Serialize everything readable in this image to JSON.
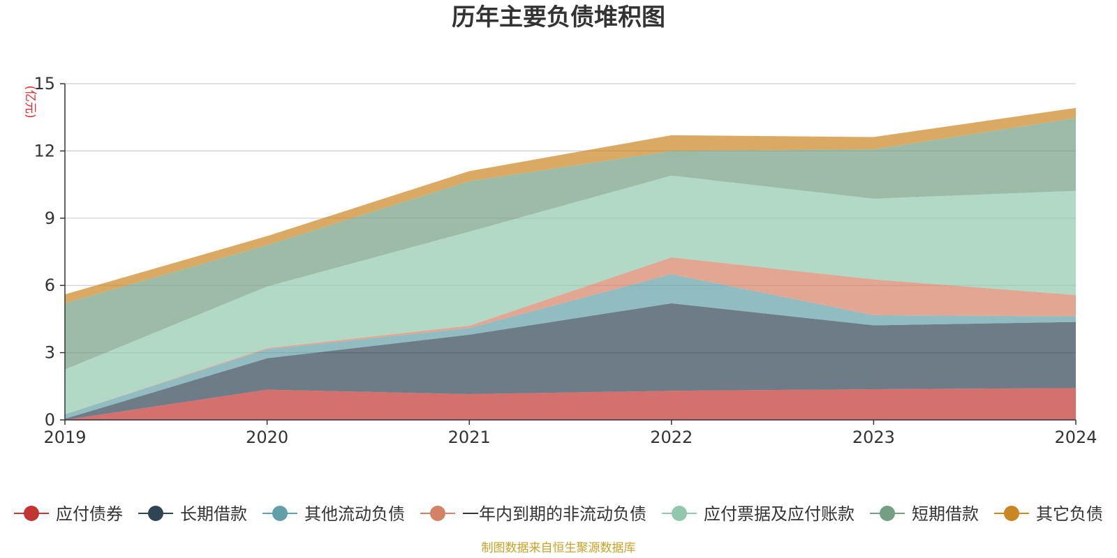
{
  "chart_data": {
    "type": "area",
    "stacked": true,
    "title": "历年主要负债堆积图",
    "ylabel": "(亿元)",
    "categories": [
      "2019",
      "2020",
      "2021",
      "2022",
      "2023",
      "2024"
    ],
    "ylim": [
      0,
      15
    ],
    "yticks": [
      0,
      3,
      6,
      9,
      12,
      15
    ],
    "grid": true,
    "legend_position": "bottom",
    "series": [
      {
        "name": "应付债券",
        "color": "#c23531",
        "values": [
          0.0,
          1.35,
          1.15,
          1.3,
          1.37,
          1.42
        ]
      },
      {
        "name": "长期借款",
        "color": "#2f4554",
        "values": [
          0.05,
          1.4,
          2.65,
          3.9,
          2.85,
          2.95
        ]
      },
      {
        "name": "其他流动负债",
        "color": "#61a0a8",
        "values": [
          0.2,
          0.4,
          0.3,
          1.3,
          0.45,
          0.25
        ]
      },
      {
        "name": "一年内到期的非流动负债",
        "color": "#d48265",
        "values": [
          0.0,
          0.05,
          0.1,
          0.75,
          1.6,
          0.95
        ]
      },
      {
        "name": "应付票据及应付账款",
        "color": "#91c7ae",
        "values": [
          2.0,
          2.75,
          4.2,
          3.65,
          3.6,
          4.65
        ]
      },
      {
        "name": "短期借款",
        "color": "#749f83",
        "values": [
          2.95,
          1.85,
          2.25,
          1.1,
          2.2,
          3.25
        ]
      },
      {
        "name": "其它负债",
        "color": "#ca8622",
        "values": [
          0.4,
          0.4,
          0.45,
          0.7,
          0.55,
          0.45
        ]
      }
    ]
  },
  "footer": {
    "source": "制图数据来自恒生聚源数据库"
  }
}
